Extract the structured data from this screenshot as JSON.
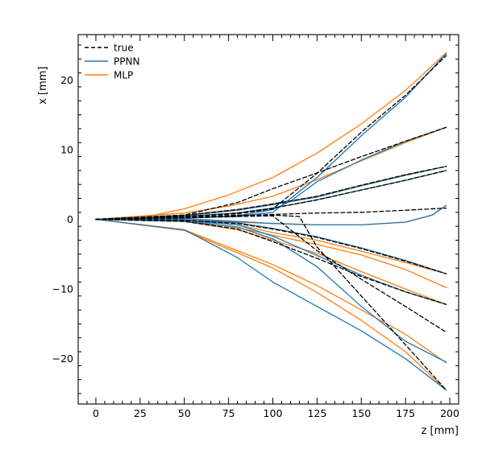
{
  "chart_data": {
    "type": "line",
    "title": "",
    "xlabel": "z [mm]",
    "ylabel": "x [mm]",
    "xlim": [
      -10,
      205
    ],
    "ylim": [
      -26.5,
      26.5
    ],
    "xticks": [
      0,
      25,
      50,
      75,
      100,
      125,
      150,
      175,
      200
    ],
    "yticks": [
      -20,
      -10,
      0,
      10,
      20
    ],
    "grid": false,
    "legend_position": "top-left",
    "colors": {
      "true": "#000000",
      "PPNN": "#1f77b4",
      "MLP": "#ff7f0e"
    },
    "legend": [
      {
        "name": "true",
        "style": "dashed",
        "color": "#000000"
      },
      {
        "name": "PPNN",
        "style": "solid",
        "color": "#1f77b4"
      },
      {
        "name": "MLP",
        "style": "solid",
        "color": "#ff7f0e"
      }
    ],
    "series": [
      {
        "name": "true",
        "style": "dashed",
        "color": "#000000",
        "tracks": [
          [
            [
              0,
              0
            ],
            [
              50,
              0.4
            ],
            [
              80,
              0.8
            ],
            [
              100,
              1.5
            ],
            [
              125,
              6.6
            ],
            [
              150,
              12.5
            ],
            [
              175,
              17.8
            ],
            [
              198,
              23.5
            ]
          ],
          [
            [
              0,
              0
            ],
            [
              50,
              0.6
            ],
            [
              80,
              2.4
            ],
            [
              100,
              4.4
            ],
            [
              120,
              6.2
            ],
            [
              150,
              9.0
            ],
            [
              175,
              11.2
            ],
            [
              198,
              13.2
            ]
          ],
          [
            [
              0,
              0
            ],
            [
              50,
              0.6
            ],
            [
              80,
              1.4
            ],
            [
              100,
              2.2
            ],
            [
              125,
              3.3
            ],
            [
              150,
              4.9
            ],
            [
              175,
              6.4
            ],
            [
              198,
              7.6
            ]
          ],
          [
            [
              0,
              0
            ],
            [
              50,
              0.4
            ],
            [
              80,
              0.9
            ],
            [
              100,
              1.6
            ],
            [
              125,
              2.8
            ],
            [
              150,
              4.2
            ],
            [
              175,
              5.6
            ],
            [
              198,
              7.0
            ]
          ],
          [
            [
              0,
              0
            ],
            [
              50,
              0.3
            ],
            [
              80,
              0.5
            ],
            [
              100,
              0.7
            ],
            [
              125,
              0.9
            ],
            [
              150,
              1.0
            ],
            [
              175,
              1.3
            ],
            [
              198,
              1.6
            ]
          ],
          [
            [
              0,
              0
            ],
            [
              50,
              -0.1
            ],
            [
              80,
              -0.6
            ],
            [
              100,
              -1.4
            ],
            [
              125,
              -2.6
            ],
            [
              150,
              -4.2
            ],
            [
              175,
              -6.0
            ],
            [
              198,
              -7.8
            ]
          ],
          [
            [
              0,
              0
            ],
            [
              50,
              0.2
            ],
            [
              80,
              0.4
            ],
            [
              100,
              0.5
            ],
            [
              110,
              -1.5
            ],
            [
              125,
              -4.5
            ],
            [
              150,
              -8.6
            ],
            [
              175,
              -12.5
            ],
            [
              198,
              -16.2
            ]
          ],
          [
            [
              0,
              0
            ],
            [
              50,
              -0.3
            ],
            [
              80,
              -1.4
            ],
            [
              100,
              -3.2
            ],
            [
              125,
              -5.6
            ],
            [
              150,
              -8.2
            ],
            [
              175,
              -10.4
            ],
            [
              198,
              -12.2
            ]
          ],
          [
            [
              0,
              0
            ],
            [
              50,
              0.3
            ],
            [
              80,
              0.6
            ],
            [
              100,
              0.6
            ],
            [
              115,
              0.4
            ],
            [
              125,
              -4.0
            ],
            [
              150,
              -11.0
            ],
            [
              175,
              -18.0
            ],
            [
              198,
              -24.5
            ]
          ]
        ]
      },
      {
        "name": "PPNN",
        "style": "solid",
        "color": "#1f77b4",
        "tracks": [
          [
            [
              0,
              0
            ],
            [
              50,
              0.2
            ],
            [
              80,
              0.4
            ],
            [
              100,
              1.0
            ],
            [
              125,
              6.0
            ],
            [
              150,
              12.0
            ],
            [
              175,
              17.5
            ],
            [
              198,
              23.8
            ]
          ],
          [
            [
              0,
              0
            ],
            [
              50,
              0.2
            ],
            [
              80,
              0.5
            ],
            [
              100,
              1.4
            ],
            [
              110,
              2.6
            ],
            [
              125,
              5.4
            ],
            [
              150,
              8.5
            ],
            [
              175,
              11.2
            ],
            [
              198,
              13.2
            ]
          ],
          [
            [
              0,
              0
            ],
            [
              50,
              0.5
            ],
            [
              80,
              1.3
            ],
            [
              100,
              2.1
            ],
            [
              125,
              3.2
            ],
            [
              150,
              4.8
            ],
            [
              175,
              6.3
            ],
            [
              198,
              7.6
            ]
          ],
          [
            [
              0,
              0
            ],
            [
              50,
              0.4
            ],
            [
              80,
              0.9
            ],
            [
              100,
              1.6
            ],
            [
              125,
              2.8
            ],
            [
              150,
              4.2
            ],
            [
              175,
              5.6
            ],
            [
              198,
              7.0
            ]
          ],
          [
            [
              0,
              0
            ],
            [
              50,
              0.1
            ],
            [
              80,
              -0.3
            ],
            [
              100,
              -0.6
            ],
            [
              125,
              -0.8
            ],
            [
              150,
              -0.8
            ],
            [
              175,
              -0.4
            ],
            [
              190,
              0.6
            ],
            [
              198,
              2.0
            ]
          ],
          [
            [
              0,
              0
            ],
            [
              50,
              -0.1
            ],
            [
              80,
              -0.5
            ],
            [
              100,
              -1.3
            ],
            [
              125,
              -2.5
            ],
            [
              150,
              -4.1
            ],
            [
              175,
              -5.9
            ],
            [
              198,
              -7.8
            ]
          ],
          [
            [
              0,
              0
            ],
            [
              50,
              -0.3
            ],
            [
              80,
              -1.1
            ],
            [
              100,
              -2.8
            ],
            [
              125,
              -6.8
            ],
            [
              150,
              -12.5
            ],
            [
              175,
              -17.5
            ],
            [
              198,
              -20.5
            ]
          ],
          [
            [
              0,
              0
            ],
            [
              50,
              -0.2
            ],
            [
              80,
              -0.8
            ],
            [
              100,
              -2.4
            ],
            [
              125,
              -5.2
            ],
            [
              150,
              -8.0
            ],
            [
              175,
              -10.4
            ],
            [
              198,
              -12.2
            ]
          ],
          [
            [
              0,
              0
            ],
            [
              50,
              -1.5
            ],
            [
              80,
              -5.5
            ],
            [
              100,
              -9.0
            ],
            [
              125,
              -12.5
            ],
            [
              150,
              -16.0
            ],
            [
              175,
              -20.0
            ],
            [
              198,
              -24.5
            ]
          ]
        ]
      },
      {
        "name": "MLP",
        "style": "solid",
        "color": "#ff7f0e",
        "tracks": [
          [
            [
              0,
              0
            ],
            [
              25,
              0.2
            ],
            [
              50,
              1.5
            ],
            [
              75,
              3.5
            ],
            [
              100,
              6.0
            ],
            [
              125,
              9.5
            ],
            [
              150,
              13.7
            ],
            [
              175,
              18.5
            ],
            [
              198,
              23.9
            ]
          ],
          [
            [
              0,
              0
            ],
            [
              50,
              0.9
            ],
            [
              75,
              1.9
            ],
            [
              100,
              3.3
            ],
            [
              125,
              5.7
            ],
            [
              150,
              8.4
            ],
            [
              175,
              11.0
            ],
            [
              198,
              13.2
            ]
          ],
          [
            [
              0,
              0
            ],
            [
              50,
              0.6
            ],
            [
              80,
              1.4
            ],
            [
              100,
              2.2
            ],
            [
              125,
              3.3
            ],
            [
              150,
              4.9
            ],
            [
              175,
              6.4
            ],
            [
              198,
              7.6
            ]
          ],
          [
            [
              0,
              0
            ],
            [
              50,
              0.4
            ],
            [
              80,
              0.9
            ],
            [
              100,
              1.6
            ],
            [
              125,
              2.8
            ],
            [
              150,
              4.2
            ],
            [
              175,
              5.6
            ],
            [
              198,
              7.0
            ]
          ],
          [
            [
              0,
              0
            ],
            [
              50,
              -0.1
            ],
            [
              80,
              -0.4
            ],
            [
              100,
              -0.6
            ],
            [
              125,
              -0.8
            ],
            [
              150,
              -0.8
            ],
            [
              175,
              -0.4
            ],
            [
              190,
              0.6
            ],
            [
              198,
              2.0
            ]
          ],
          [
            [
              0,
              0
            ],
            [
              50,
              -0.2
            ],
            [
              80,
              -1.2
            ],
            [
              100,
              -2.3
            ],
            [
              125,
              -3.6
            ],
            [
              150,
              -5.1
            ],
            [
              175,
              -7.2
            ],
            [
              198,
              -9.8
            ]
          ],
          [
            [
              0,
              0
            ],
            [
              50,
              -0.3
            ],
            [
              80,
              -1.5
            ],
            [
              100,
              -3.0
            ],
            [
              125,
              -4.9
            ],
            [
              150,
              -7.5
            ],
            [
              175,
              -10.0
            ],
            [
              198,
              -12.2
            ]
          ],
          [
            [
              0,
              0
            ],
            [
              50,
              -0.1
            ],
            [
              80,
              -0.8
            ],
            [
              100,
              -1.9
            ],
            [
              125,
              -3.0
            ],
            [
              150,
              -4.6
            ],
            [
              175,
              -6.2
            ],
            [
              198,
              -7.8
            ]
          ],
          [
            [
              0,
              0
            ],
            [
              50,
              -1.5
            ],
            [
              80,
              -4.5
            ],
            [
              100,
              -6.5
            ],
            [
              125,
              -9.5
            ],
            [
              150,
              -13.0
            ],
            [
              175,
              -16.5
            ],
            [
              198,
              -20.6
            ]
          ],
          [
            [
              0,
              0
            ],
            [
              50,
              -1.6
            ],
            [
              80,
              -4.8
            ],
            [
              100,
              -7.0
            ],
            [
              125,
              -10.5
            ],
            [
              150,
              -14.5
            ],
            [
              175,
              -19.0
            ],
            [
              198,
              -24.5
            ]
          ]
        ]
      }
    ]
  }
}
